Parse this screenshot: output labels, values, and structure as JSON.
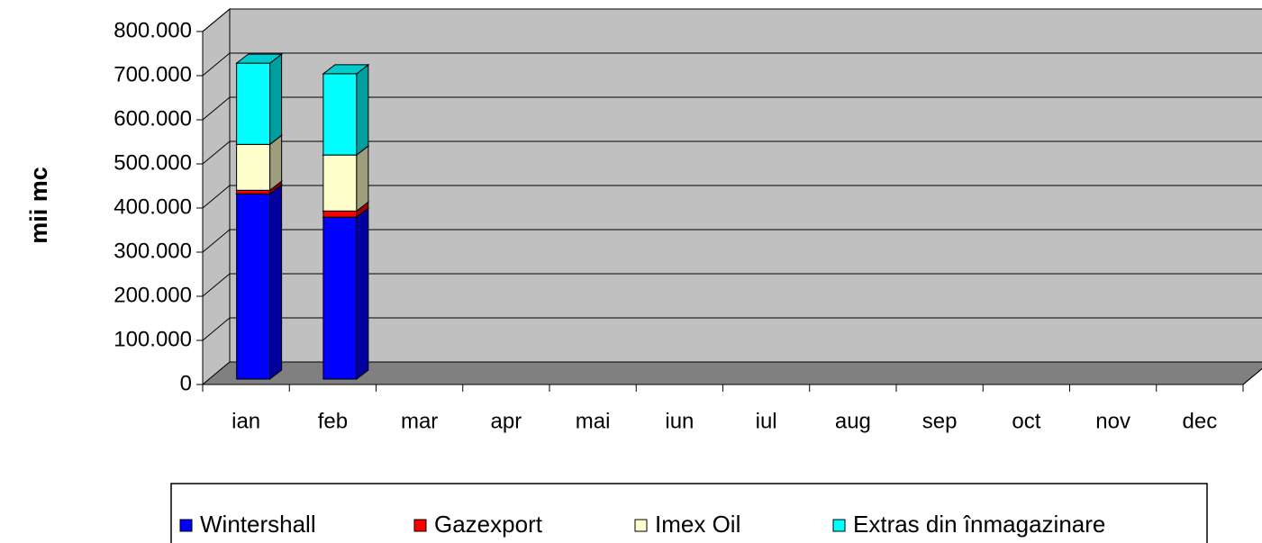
{
  "chart_data": {
    "type": "bar",
    "stacked": true,
    "y_label": "mii mc",
    "categories": [
      "ian",
      "feb",
      "mar",
      "apr",
      "mai",
      "iun",
      "iul",
      "aug",
      "sep",
      "oct",
      "nov",
      "dec"
    ],
    "series": [
      {
        "name": "Wintershall",
        "color": "#0000ff",
        "values": [
          420000,
          367000,
          null,
          null,
          null,
          null,
          null,
          null,
          null,
          null,
          null,
          null
        ]
      },
      {
        "name": "Gazexport",
        "color": "#ff0000",
        "values": [
          8000,
          14000,
          null,
          null,
          null,
          null,
          null,
          null,
          null,
          null,
          null,
          null
        ]
      },
      {
        "name": "Imex Oil",
        "color": "#ffffcc",
        "values": [
          104000,
          127000,
          null,
          null,
          null,
          null,
          null,
          null,
          null,
          null,
          null,
          null
        ]
      },
      {
        "name": "Extras din înmagazinare",
        "color": "#00ffff",
        "values": [
          184000,
          184000,
          null,
          null,
          null,
          null,
          null,
          null,
          null,
          null,
          null,
          null
        ]
      }
    ],
    "ylim": [
      0,
      800000
    ],
    "yticks": [
      0,
      {
        "value": 100000,
        "label": "100.000"
      },
      {
        "value": 200000,
        "label": "200.000"
      },
      {
        "value": 300000,
        "label": "300.000"
      },
      {
        "value": 400000,
        "label": "400.000"
      },
      {
        "value": 500000,
        "label": "500.000"
      },
      {
        "value": 600000,
        "label": "600.000"
      },
      {
        "value": 700000,
        "label": "700.000"
      },
      {
        "value": 800000,
        "label": "800.000"
      }
    ],
    "grid": true,
    "legend": "bottom"
  }
}
